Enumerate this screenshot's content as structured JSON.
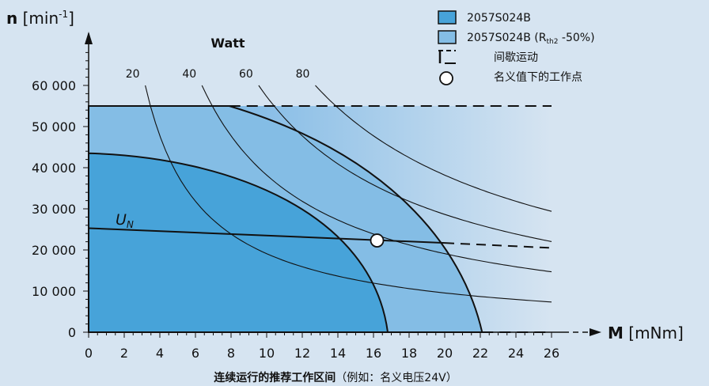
{
  "chart_data": {
    "type": "area",
    "y_axis": {
      "symbol": "n",
      "unit": "[min",
      "unit_sup": "-1",
      "unit_close": "]"
    },
    "x_axis": {
      "symbol": "M",
      "unit": "[mNm]"
    },
    "xlim": [
      0,
      26
    ],
    "ylim": [
      0,
      60000
    ],
    "x_ticks": [
      0,
      2,
      4,
      6,
      8,
      10,
      12,
      14,
      16,
      18,
      20,
      22,
      24,
      26
    ],
    "x_tick_labels": [
      "0",
      "2",
      "4",
      "6",
      "8",
      "10",
      "12",
      "14",
      "16",
      "18",
      "20",
      "22",
      "24",
      "26"
    ],
    "y_ticks": [
      0,
      10000,
      20000,
      30000,
      40000,
      50000,
      60000
    ],
    "y_tick_labels": [
      "0",
      "10 000",
      "20 000",
      "30 000",
      "40 000",
      "50 000",
      "60 000"
    ],
    "grid": false,
    "colors": {
      "continuous": "#47a3d9",
      "rth": "#84bde5",
      "intermittent_start": "#5ba7e0",
      "intermittent_end": "#d6e4f1",
      "background": "#d6e4f1"
    },
    "regions": [
      {
        "name": "2057S024B",
        "kind": "continuous",
        "max_speed_torque0": 43500,
        "max_torque_speed0": 16.8
      },
      {
        "name": "2057S024B (Rth2 -50%)",
        "kind": "rth",
        "speed_limit": 55000,
        "corner_torque": 7.9,
        "max_torque_speed0": 22.1
      },
      {
        "name": "间歇运动",
        "kind": "intermittent",
        "speed_limit": 55000,
        "x_end": 26
      }
    ],
    "un_line": {
      "label": "U",
      "label_sub": "N",
      "points": [
        [
          0,
          25300
        ],
        [
          20,
          21700
        ],
        [
          26,
          20500
        ]
      ],
      "solid_until": 20
    },
    "power_curves_label": "Watt",
    "power_curves": [
      {
        "label": "20",
        "watts": 20
      },
      {
        "label": "40",
        "watts": 40
      },
      {
        "label": "60",
        "watts": 60
      },
      {
        "label": "80",
        "watts": 80
      }
    ],
    "nominal_point": {
      "torque": 16.2,
      "speed": 22300
    },
    "legend": [
      {
        "label": "2057S024B",
        "sub": "",
        "suffix": "",
        "marker": "box-dark"
      },
      {
        "label": "2057S024B (R",
        "sub": "th2",
        "suffix": " -50%)",
        "marker": "box-light"
      },
      {
        "label": "间歇运动",
        "sub": "",
        "suffix": "",
        "marker": "dashed"
      },
      {
        "label": "名义值下的工作点",
        "sub": "",
        "suffix": "",
        "marker": "circle"
      }
    ],
    "caption_bold": "连续运行的推荐工作区间",
    "caption_normal": "（例如：名义电压24V）"
  }
}
